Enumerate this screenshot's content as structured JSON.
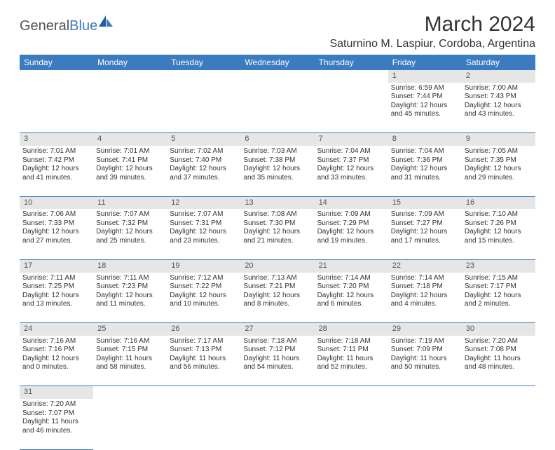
{
  "logo": {
    "part1": "General",
    "part2": "Blue"
  },
  "title": "March 2024",
  "location": "Saturnino M. Laspiur, Cordoba, Argentina",
  "colors": {
    "header_bg": "#3b7bbf",
    "header_text": "#ffffff",
    "daynum_bg": "#e6e6e6",
    "border": "#3b7bbf",
    "text": "#333333",
    "logo_gray": "#555555",
    "logo_blue": "#3b7bbf",
    "page_bg": "#ffffff"
  },
  "day_headers": [
    "Sunday",
    "Monday",
    "Tuesday",
    "Wednesday",
    "Thursday",
    "Friday",
    "Saturday"
  ],
  "weeks": [
    {
      "nums": [
        "",
        "",
        "",
        "",
        "",
        "1",
        "2"
      ],
      "cells": [
        null,
        null,
        null,
        null,
        null,
        {
          "sunrise": "Sunrise: 6:59 AM",
          "sunset": "Sunset: 7:44 PM",
          "day1": "Daylight: 12 hours",
          "day2": "and 45 minutes."
        },
        {
          "sunrise": "Sunrise: 7:00 AM",
          "sunset": "Sunset: 7:43 PM",
          "day1": "Daylight: 12 hours",
          "day2": "and 43 minutes."
        }
      ]
    },
    {
      "nums": [
        "3",
        "4",
        "5",
        "6",
        "7",
        "8",
        "9"
      ],
      "cells": [
        {
          "sunrise": "Sunrise: 7:01 AM",
          "sunset": "Sunset: 7:42 PM",
          "day1": "Daylight: 12 hours",
          "day2": "and 41 minutes."
        },
        {
          "sunrise": "Sunrise: 7:01 AM",
          "sunset": "Sunset: 7:41 PM",
          "day1": "Daylight: 12 hours",
          "day2": "and 39 minutes."
        },
        {
          "sunrise": "Sunrise: 7:02 AM",
          "sunset": "Sunset: 7:40 PM",
          "day1": "Daylight: 12 hours",
          "day2": "and 37 minutes."
        },
        {
          "sunrise": "Sunrise: 7:03 AM",
          "sunset": "Sunset: 7:38 PM",
          "day1": "Daylight: 12 hours",
          "day2": "and 35 minutes."
        },
        {
          "sunrise": "Sunrise: 7:04 AM",
          "sunset": "Sunset: 7:37 PM",
          "day1": "Daylight: 12 hours",
          "day2": "and 33 minutes."
        },
        {
          "sunrise": "Sunrise: 7:04 AM",
          "sunset": "Sunset: 7:36 PM",
          "day1": "Daylight: 12 hours",
          "day2": "and 31 minutes."
        },
        {
          "sunrise": "Sunrise: 7:05 AM",
          "sunset": "Sunset: 7:35 PM",
          "day1": "Daylight: 12 hours",
          "day2": "and 29 minutes."
        }
      ]
    },
    {
      "nums": [
        "10",
        "11",
        "12",
        "13",
        "14",
        "15",
        "16"
      ],
      "cells": [
        {
          "sunrise": "Sunrise: 7:06 AM",
          "sunset": "Sunset: 7:33 PM",
          "day1": "Daylight: 12 hours",
          "day2": "and 27 minutes."
        },
        {
          "sunrise": "Sunrise: 7:07 AM",
          "sunset": "Sunset: 7:32 PM",
          "day1": "Daylight: 12 hours",
          "day2": "and 25 minutes."
        },
        {
          "sunrise": "Sunrise: 7:07 AM",
          "sunset": "Sunset: 7:31 PM",
          "day1": "Daylight: 12 hours",
          "day2": "and 23 minutes."
        },
        {
          "sunrise": "Sunrise: 7:08 AM",
          "sunset": "Sunset: 7:30 PM",
          "day1": "Daylight: 12 hours",
          "day2": "and 21 minutes."
        },
        {
          "sunrise": "Sunrise: 7:09 AM",
          "sunset": "Sunset: 7:29 PM",
          "day1": "Daylight: 12 hours",
          "day2": "and 19 minutes."
        },
        {
          "sunrise": "Sunrise: 7:09 AM",
          "sunset": "Sunset: 7:27 PM",
          "day1": "Daylight: 12 hours",
          "day2": "and 17 minutes."
        },
        {
          "sunrise": "Sunrise: 7:10 AM",
          "sunset": "Sunset: 7:26 PM",
          "day1": "Daylight: 12 hours",
          "day2": "and 15 minutes."
        }
      ]
    },
    {
      "nums": [
        "17",
        "18",
        "19",
        "20",
        "21",
        "22",
        "23"
      ],
      "cells": [
        {
          "sunrise": "Sunrise: 7:11 AM",
          "sunset": "Sunset: 7:25 PM",
          "day1": "Daylight: 12 hours",
          "day2": "and 13 minutes."
        },
        {
          "sunrise": "Sunrise: 7:11 AM",
          "sunset": "Sunset: 7:23 PM",
          "day1": "Daylight: 12 hours",
          "day2": "and 11 minutes."
        },
        {
          "sunrise": "Sunrise: 7:12 AM",
          "sunset": "Sunset: 7:22 PM",
          "day1": "Daylight: 12 hours",
          "day2": "and 10 minutes."
        },
        {
          "sunrise": "Sunrise: 7:13 AM",
          "sunset": "Sunset: 7:21 PM",
          "day1": "Daylight: 12 hours",
          "day2": "and 8 minutes."
        },
        {
          "sunrise": "Sunrise: 7:14 AM",
          "sunset": "Sunset: 7:20 PM",
          "day1": "Daylight: 12 hours",
          "day2": "and 6 minutes."
        },
        {
          "sunrise": "Sunrise: 7:14 AM",
          "sunset": "Sunset: 7:18 PM",
          "day1": "Daylight: 12 hours",
          "day2": "and 4 minutes."
        },
        {
          "sunrise": "Sunrise: 7:15 AM",
          "sunset": "Sunset: 7:17 PM",
          "day1": "Daylight: 12 hours",
          "day2": "and 2 minutes."
        }
      ]
    },
    {
      "nums": [
        "24",
        "25",
        "26",
        "27",
        "28",
        "29",
        "30"
      ],
      "cells": [
        {
          "sunrise": "Sunrise: 7:16 AM",
          "sunset": "Sunset: 7:16 PM",
          "day1": "Daylight: 12 hours",
          "day2": "and 0 minutes."
        },
        {
          "sunrise": "Sunrise: 7:16 AM",
          "sunset": "Sunset: 7:15 PM",
          "day1": "Daylight: 11 hours",
          "day2": "and 58 minutes."
        },
        {
          "sunrise": "Sunrise: 7:17 AM",
          "sunset": "Sunset: 7:13 PM",
          "day1": "Daylight: 11 hours",
          "day2": "and 56 minutes."
        },
        {
          "sunrise": "Sunrise: 7:18 AM",
          "sunset": "Sunset: 7:12 PM",
          "day1": "Daylight: 11 hours",
          "day2": "and 54 minutes."
        },
        {
          "sunrise": "Sunrise: 7:18 AM",
          "sunset": "Sunset: 7:11 PM",
          "day1": "Daylight: 11 hours",
          "day2": "and 52 minutes."
        },
        {
          "sunrise": "Sunrise: 7:19 AM",
          "sunset": "Sunset: 7:09 PM",
          "day1": "Daylight: 11 hours",
          "day2": "and 50 minutes."
        },
        {
          "sunrise": "Sunrise: 7:20 AM",
          "sunset": "Sunset: 7:08 PM",
          "day1": "Daylight: 11 hours",
          "day2": "and 48 minutes."
        }
      ]
    },
    {
      "nums": [
        "31",
        "",
        "",
        "",
        "",
        "",
        ""
      ],
      "cells": [
        {
          "sunrise": "Sunrise: 7:20 AM",
          "sunset": "Sunset: 7:07 PM",
          "day1": "Daylight: 11 hours",
          "day2": "and 46 minutes."
        },
        null,
        null,
        null,
        null,
        null,
        null
      ]
    }
  ]
}
